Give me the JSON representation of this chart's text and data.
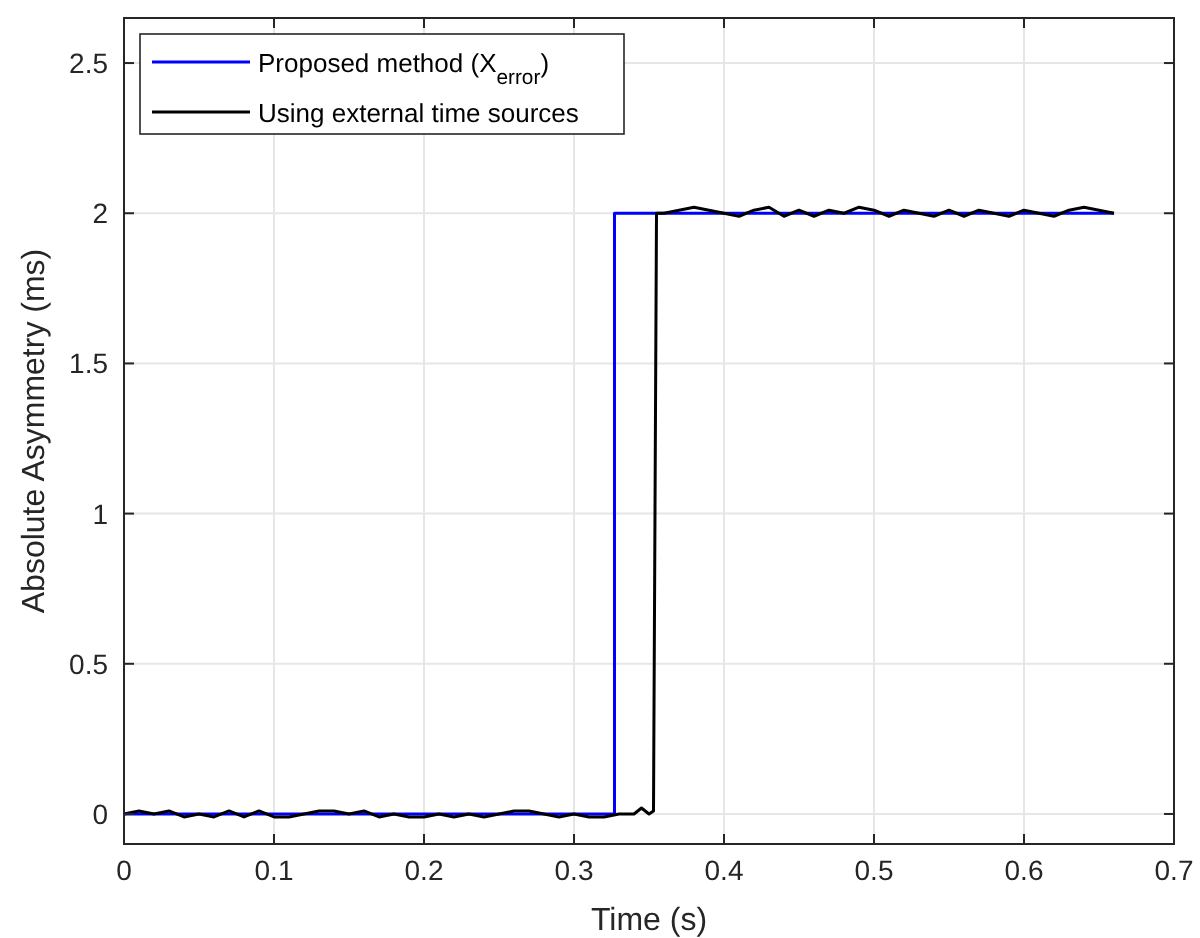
{
  "chart_data": {
    "type": "line",
    "xlabel": "Time (s)",
    "ylabel": "Absolute Asymmetry (ms)",
    "xlim": [
      0,
      0.7
    ],
    "ylim": [
      -0.1,
      2.65
    ],
    "xticks": [
      0,
      0.1,
      0.2,
      0.3,
      0.4,
      0.5,
      0.6,
      0.7
    ],
    "yticks": [
      0,
      0.5,
      1,
      1.5,
      2,
      2.5
    ],
    "grid": true,
    "legend": "top left",
    "line_style": "solid",
    "series": [
      {
        "name": "Proposed method (X$_{error}$)",
        "color": "#0000ff",
        "x": [
          0,
          0.327,
          0.327,
          0.66
        ],
        "values": [
          0,
          0,
          2,
          2
        ]
      },
      {
        "name": "Using external time sources",
        "color": "#000000",
        "x": [
          0,
          0.01,
          0.02,
          0.03,
          0.04,
          0.05,
          0.06,
          0.07,
          0.08,
          0.09,
          0.1,
          0.11,
          0.12,
          0.13,
          0.14,
          0.15,
          0.16,
          0.17,
          0.18,
          0.19,
          0.2,
          0.21,
          0.22,
          0.23,
          0.24,
          0.25,
          0.26,
          0.27,
          0.28,
          0.29,
          0.3,
          0.31,
          0.32,
          0.33,
          0.34,
          0.345,
          0.35,
          0.353,
          0.355,
          0.36,
          0.37,
          0.38,
          0.39,
          0.4,
          0.41,
          0.42,
          0.43,
          0.44,
          0.45,
          0.46,
          0.47,
          0.48,
          0.49,
          0.5,
          0.51,
          0.52,
          0.53,
          0.54,
          0.55,
          0.56,
          0.57,
          0.58,
          0.59,
          0.6,
          0.61,
          0.62,
          0.63,
          0.64,
          0.65,
          0.66
        ],
        "values": [
          0,
          0.01,
          0,
          0.01,
          -0.01,
          0,
          -0.01,
          0.01,
          -0.01,
          0.01,
          -0.01,
          -0.01,
          0,
          0.01,
          0.01,
          0,
          0.01,
          -0.01,
          0,
          -0.01,
          -0.01,
          0,
          -0.01,
          0,
          -0.01,
          0,
          0.01,
          0.01,
          0,
          -0.01,
          0,
          -0.01,
          -0.01,
          0,
          0,
          0.02,
          0,
          0.01,
          2,
          2,
          2.01,
          2.02,
          2.01,
          2,
          1.99,
          2.01,
          2.02,
          1.99,
          2.01,
          1.99,
          2.01,
          2,
          2.02,
          2.01,
          1.99,
          2.01,
          2,
          1.99,
          2.01,
          1.99,
          2.01,
          2,
          1.99,
          2.01,
          2,
          1.99,
          2.01,
          2.02,
          2.01,
          2
        ]
      }
    ]
  }
}
